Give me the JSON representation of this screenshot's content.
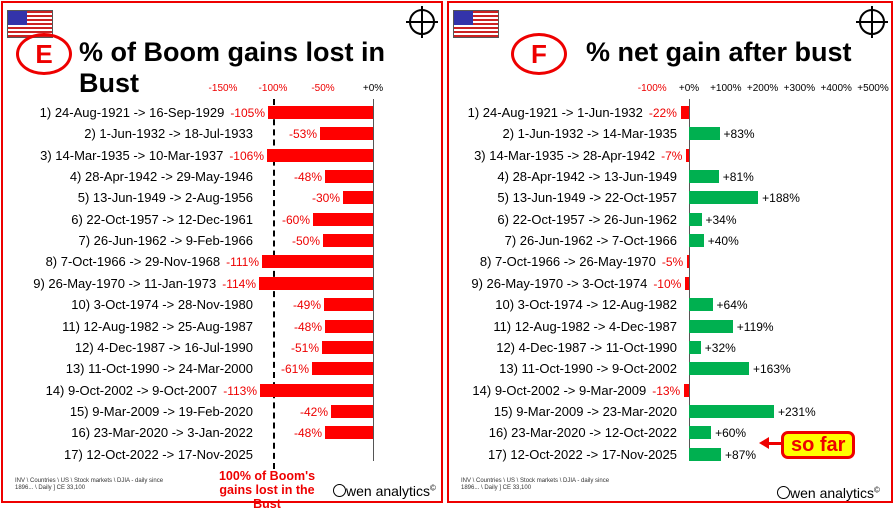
{
  "chart_data": [
    {
      "type": "bar",
      "badge": "E",
      "title": "% of Boom gains lost in Bust",
      "ticks": [
        "-150%",
        "-100%",
        "-50%",
        "+0%"
      ],
      "tick_values": [
        -150,
        -100,
        -50,
        0
      ],
      "xlim": [
        -150,
        0
      ],
      "bar_color": "#ff0000",
      "categories": [
        "1) 24-Aug-1921 -> 16-Sep-1929",
        "2) 1-Jun-1932 -> 18-Jul-1933",
        "3) 14-Mar-1935 -> 10-Mar-1937",
        "4) 28-Apr-1942 -> 29-May-1946",
        "5) 13-Jun-1949 -> 2-Aug-1956",
        "6) 22-Oct-1957 -> 12-Dec-1961",
        "7) 26-Jun-1962 -> 9-Feb-1966",
        "8) 7-Oct-1966 -> 29-Nov-1968",
        "9) 26-May-1970 -> 11-Jan-1973",
        "10) 3-Oct-1974 -> 28-Nov-1980",
        "11) 12-Aug-1982 -> 25-Aug-1987",
        "12) 4-Dec-1987 -> 16-Jul-1990",
        "13) 11-Oct-1990 -> 24-Mar-2000",
        "14) 9-Oct-2002 -> 9-Oct-2007",
        "15) 9-Mar-2009 -> 19-Feb-2020",
        "16) 23-Mar-2020 -> 3-Jan-2022",
        "17) 12-Oct-2022 -> 17-Nov-2025"
      ],
      "values": [
        -105,
        -53,
        -106,
        -48,
        -30,
        -60,
        -50,
        -111,
        -114,
        -49,
        -48,
        -51,
        -61,
        -113,
        -42,
        -48,
        null
      ],
      "labels": [
        "-105%",
        "-53%",
        "-106%",
        "-48%",
        "-30%",
        "-60%",
        "-50%",
        "-111%",
        "-114%",
        "-49%",
        "-48%",
        "-51%",
        "-61%",
        "-113%",
        "-42%",
        "-48%",
        ""
      ],
      "annotation": "100% of Boom's gains lost in the Bust",
      "reference_line": -100,
      "source": "INV \\ Countries \\ US \\ Stock markets \\ DJIA - daily since 1896... \\  Daily ] CE 33,100",
      "brand": "wen analytics"
    },
    {
      "type": "bar",
      "badge": "F",
      "title": "% net gain after bust",
      "ticks": [
        "-100%",
        "+0%",
        "+100%",
        "+200%",
        "+300%",
        "+400%",
        "+500%"
      ],
      "tick_values": [
        -100,
        0,
        100,
        200,
        300,
        400,
        500
      ],
      "xlim": [
        -100,
        500
      ],
      "pos_color": "#00b050",
      "neg_color": "#ff0000",
      "categories": [
        "1) 24-Aug-1921 -> 1-Jun-1932",
        "2) 1-Jun-1932 -> 14-Mar-1935",
        "3) 14-Mar-1935 -> 28-Apr-1942",
        "4) 28-Apr-1942 -> 13-Jun-1949",
        "5) 13-Jun-1949 -> 22-Oct-1957",
        "6) 22-Oct-1957 -> 26-Jun-1962",
        "7) 26-Jun-1962 -> 7-Oct-1966",
        "8) 7-Oct-1966 -> 26-May-1970",
        "9) 26-May-1970 -> 3-Oct-1974",
        "10) 3-Oct-1974 -> 12-Aug-1982",
        "11) 12-Aug-1982 -> 4-Dec-1987",
        "12) 4-Dec-1987 -> 11-Oct-1990",
        "13) 11-Oct-1990 -> 9-Oct-2002",
        "14) 9-Oct-2002 -> 9-Mar-2009",
        "15) 9-Mar-2009 -> 23-Mar-2020",
        "16) 23-Mar-2020 -> 12-Oct-2022",
        "17) 12-Oct-2022 -> 17-Nov-2025"
      ],
      "values": [
        -22,
        83,
        -7,
        81,
        188,
        34,
        40,
        -5,
        -10,
        64,
        119,
        32,
        163,
        -13,
        231,
        60,
        87
      ],
      "labels": [
        "-22%",
        "+83%",
        "-7%",
        "+81%",
        "+188%",
        "+34%",
        "+40%",
        "-5%",
        "-10%",
        "+64%",
        "+119%",
        "+32%",
        "+163%",
        "-13%",
        "+231%",
        "+60%",
        "+87%"
      ],
      "callout": "so far",
      "source": "INV \\ Countries \\ US \\ Stock markets \\ DJIA - daily since 1896... \\  Daily ] CE 33,100",
      "brand": "wen analytics"
    }
  ]
}
